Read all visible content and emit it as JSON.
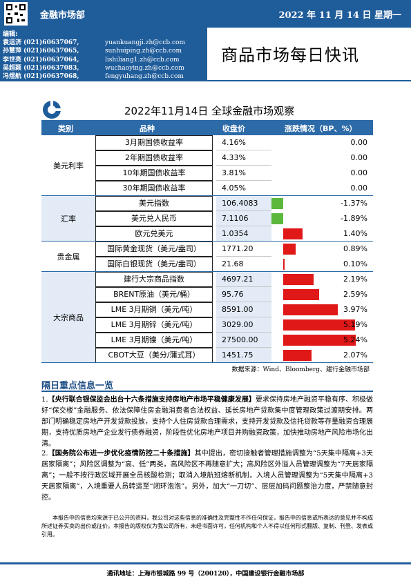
{
  "header": {
    "department": "金融市场部",
    "date": "2022 年 11 月 14 日 星期一",
    "title": "商品市场每日快讯"
  },
  "editors": {
    "label": "编辑:",
    "list": [
      {
        "name": "袁运济",
        "tel": "(021)60637067,",
        "email": "yuankuangji.zh@ccb.com"
      },
      {
        "name": "孙慧萍",
        "tel": "(021)60637065,",
        "email": "sunhuiping.zh@ccb.com"
      },
      {
        "name": "李世亮",
        "tel": "(021)60637064,",
        "email": "lishiliang1.zh@ccb.com"
      },
      {
        "name": "吴超颖",
        "tel": "(021)60637083,",
        "email": "wuchaoying.zh@ccb.com"
      },
      {
        "name": "冯煜航",
        "tel": "(021)60637068,",
        "email": "fengyuhang.zh@ccb.com"
      }
    ]
  },
  "table": {
    "title": "2022年11月14日 全球金融市场观察",
    "headers": [
      "类别",
      "品种",
      "收盘价",
      "涨跌情况（BP、%）"
    ],
    "groups": [
      {
        "category": "美元利率",
        "rows": [
          {
            "name": "3月期国债收益率",
            "value": "4.16%",
            "change": "0.00",
            "pct": 0
          },
          {
            "name": "2年期国债收益率",
            "value": "4.33%",
            "change": "0.00",
            "pct": 0
          },
          {
            "name": "10年期国债收益率",
            "value": "3.81%",
            "change": "0.00",
            "pct": 0
          },
          {
            "name": "30年期国债收益率",
            "value": "4.05%",
            "change": "0.00",
            "pct": 0
          }
        ]
      },
      {
        "category": "汇率",
        "rows": [
          {
            "name": "美元指数",
            "value": "106.4083",
            "change": "-1.37%",
            "pct": -1.37
          },
          {
            "name": "美元兑人民币",
            "value": "7.1106",
            "change": "-1.89%",
            "pct": -1.89
          },
          {
            "name": "欧元兑美元",
            "value": "1.0354",
            "change": "1.40%",
            "pct": 1.4
          }
        ]
      },
      {
        "category": "贵金属",
        "rows": [
          {
            "name": "国际黄金现货（美元/盎司）",
            "value": "1771.20",
            "change": "0.89%",
            "pct": 0.89
          },
          {
            "name": "国际白银现货（美元/盎司）",
            "value": "21.68",
            "change": "0.10%",
            "pct": 0.1
          }
        ]
      },
      {
        "category": "大宗商品",
        "rows": [
          {
            "name": "建行大宗商品指数",
            "value": "4697.21",
            "change": "2.19%",
            "pct": 2.19
          },
          {
            "name": "BRENT原油（美元/桶）",
            "value": "95.76",
            "change": "2.59%",
            "pct": 2.59
          },
          {
            "name": "LME 3月期铜（美元/吨）",
            "value": "8591.00",
            "change": "3.97%",
            "pct": 3.97
          },
          {
            "name": "LME 3月期锌（美元/吨）",
            "value": "3029.00",
            "change": "5.19%",
            "pct": 5.19
          },
          {
            "name": "LME 3月期镍（美元/吨）",
            "value": "27500.00",
            "change": "5.24%",
            "pct": 5.24
          },
          {
            "name": "CBOT大豆（美分/蒲式耳）",
            "value": "1451.75",
            "change": "2.07%",
            "pct": 2.07
          }
        ]
      }
    ],
    "source": "数据来源：Wind、Bloomberg、建行金融市场部"
  },
  "news": {
    "section_title": "隔日重点信息一览",
    "items": [
      {
        "num": "1.",
        "headline": "【央行联合银保监会出台十六条措施支持房地产市场平稳健康发展】",
        "body": "要求保持房地产融资平稳有序、积极做好“保交楼”金融服务、依法保障住房金融消费者合法权益、延长房地产贷款集中度管理政策过渡期安排。两部门明确稳定房地产开发贷款投放，支持个人住房贷款合理需求，支持开发贷款及信托贷款等存量融资合理展期，支持优质房地产企业发行债券融资，阶段性优化房地产项目并购融资政策，加快推动房地产风险市场化出清。"
      },
      {
        "num": "2.",
        "headline": "【国务院公布进一步优化疫情防控二十条措施】",
        "body": "其中提出，密切接触者管理措施调整为“5天集中隔离+3天居家隔离”；风险区调整为“高、低”两类，高风险区不再随意扩大；高风险区外溢人员管理调整为“7天居家隔离”；一般不按行政区域开展全员核酸检测；取消入境航班熔断机制，入境人员管理调整为“5天集中隔离+3天居家隔离”，入境重要人员转运至“闭环泡泡”。另外，加大“一刀切”、层层加码问题整治力度，严禁随意封控。"
      }
    ]
  },
  "disclaimer": "本报告中的信息均来源于已公开的资料，我公司对这些信息的准确性及完整性不作任何保证，报告中的信息或所表达的意见并不构成所述证券买卖的出价或征价。本报告的版权仅为我公司所有，未经书面许可，任何机构和个人不得以任何形式翻版、复制、刊登、发表或引用。",
  "footer": "通讯地址：上海市银城路 99 号（200120），中国建设银行金融市场部"
}
